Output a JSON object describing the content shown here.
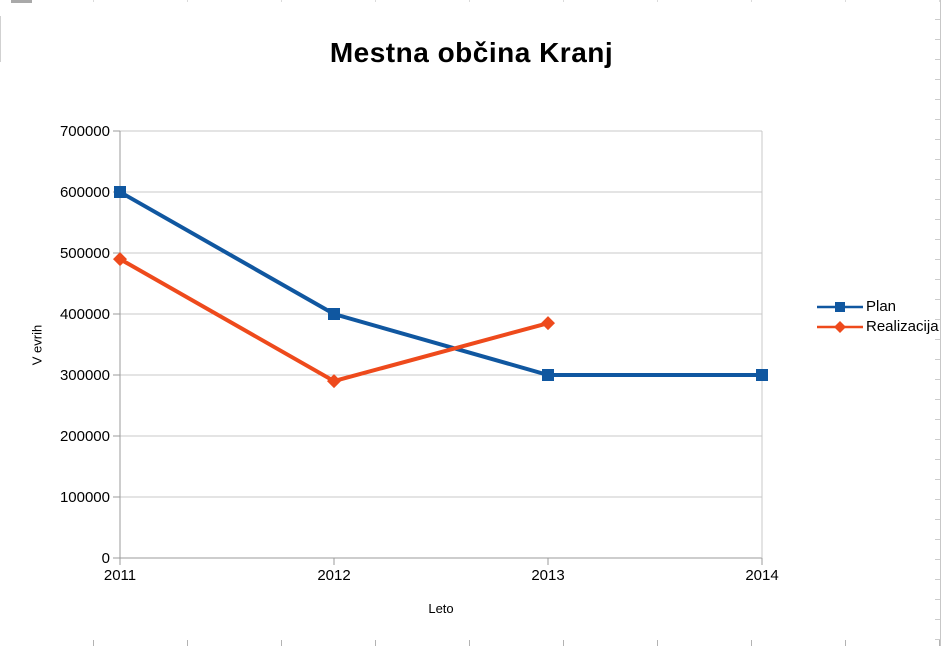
{
  "chart_data": {
    "type": "line",
    "title": "Mestna občina Kranj",
    "xlabel": "Leto",
    "ylabel": "V evrih",
    "categories": [
      "2011",
      "2012",
      "2013",
      "2014"
    ],
    "yticks": [
      0,
      100000,
      200000,
      300000,
      400000,
      500000,
      600000,
      700000
    ],
    "ylim": [
      0,
      700000
    ],
    "grid": "horizontal",
    "legend_position": "right",
    "series": [
      {
        "name": "Plan",
        "color": "#1057A0",
        "marker": "square",
        "values": [
          600000,
          400000,
          300000,
          300000
        ]
      },
      {
        "name": "Realizacija",
        "color": "#EE4A1C",
        "marker": "diamond",
        "values": [
          490000,
          290000,
          385000,
          null
        ]
      }
    ]
  },
  "colors": {
    "gridline": "#c9c9c9",
    "axis": "#9b9b9b",
    "plot_right_border": "#c9c9c9",
    "text": "#000000"
  }
}
